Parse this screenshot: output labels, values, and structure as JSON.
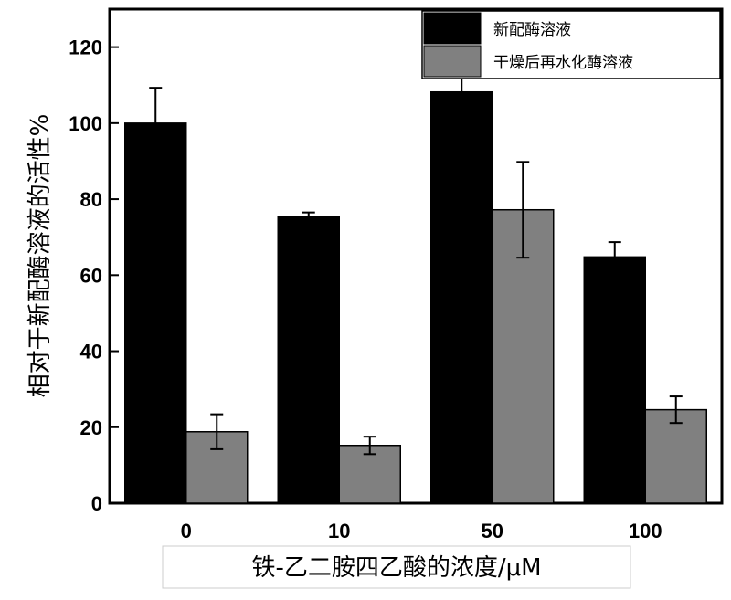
{
  "chart_data": {
    "type": "bar",
    "categories": [
      "0",
      "10",
      "50",
      "100"
    ],
    "series": [
      {
        "name": "新配酶溶液",
        "color": "#000000",
        "values": [
          100,
          75.3,
          108.2,
          64.8
        ],
        "errors": [
          9.3,
          1.2,
          3.6,
          3.9
        ]
      },
      {
        "name": "干燥后再水化酶溶液",
        "color": "#808080",
        "values": [
          18.8,
          15.2,
          77.2,
          24.6
        ],
        "errors": [
          4.6,
          2.3,
          12.6,
          3.5
        ]
      }
    ],
    "xlabel": "铁-乙二胺四乙酸的浓度/μM",
    "ylabel": "相对于新配酶溶液的活性%",
    "ylim": [
      0,
      130
    ],
    "yticks": [
      0,
      20,
      40,
      60,
      80,
      100,
      120
    ],
    "legend_position": "top-right",
    "grid": false
  }
}
